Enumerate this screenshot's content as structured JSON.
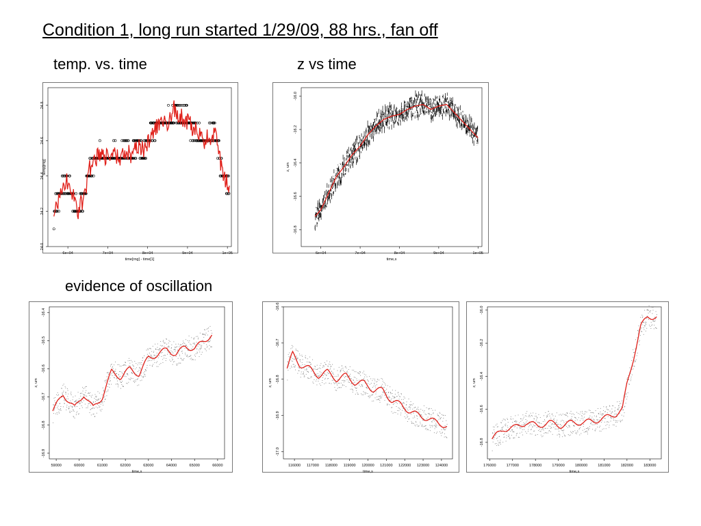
{
  "slide": {
    "title": "Condition 1, long run started 1/29/09, 88 hrs., fan off",
    "label_temp": "temp. vs. time",
    "label_z": "z vs time",
    "label_oscillation": "evidence of oscillation"
  },
  "colors": {
    "points": "#000000",
    "smooth": "#e0201a",
    "axis": "#000000"
  },
  "chart_data": [
    {
      "id": "temp",
      "type": "scatter",
      "xlabel": "time[rng] - time[1]",
      "ylabel": "temp[rng]",
      "xlim": [
        55000,
        101000
      ],
      "ylim": [
        24.0,
        24.9
      ],
      "xticks": [
        60000,
        70000,
        80000,
        90000,
        100000
      ],
      "xtick_labels": [
        "6e+04",
        "7e+04",
        "8e+04",
        "9e+04",
        "1e+05"
      ],
      "yticks": [
        24.0,
        24.2,
        24.4,
        24.6,
        24.8
      ],
      "ytick_labels": [
        "24.0",
        "24.2",
        "24.4",
        "24.6",
        "24.8"
      ],
      "smooth_x": [
        56500,
        58000,
        59500,
        61000,
        62500,
        64000,
        65500,
        67000,
        68500,
        70000,
        71500,
        73000,
        74500,
        76000,
        77500,
        79000,
        80500,
        82000,
        83500,
        85000,
        86500,
        88000,
        89500,
        91000,
        92500,
        94000,
        95500,
        97000,
        98500,
        100500
      ],
      "smooth_y": [
        24.18,
        24.28,
        24.38,
        24.3,
        24.2,
        24.28,
        24.44,
        24.5,
        24.52,
        24.5,
        24.52,
        24.5,
        24.55,
        24.5,
        24.58,
        24.55,
        24.62,
        24.68,
        24.72,
        24.7,
        24.78,
        24.74,
        24.72,
        24.68,
        24.64,
        24.6,
        24.62,
        24.64,
        24.44,
        24.33
      ],
      "grid": false
    },
    {
      "id": "z",
      "type": "scatter",
      "xlabel": "time,s",
      "ylabel": "z, um",
      "xlim": [
        55000,
        101000
      ],
      "ylim": [
        -16.9,
        -15.95
      ],
      "xticks": [
        60000,
        70000,
        80000,
        90000,
        100000
      ],
      "xtick_labels": [
        "6e+04",
        "7e+04",
        "8e+04",
        "9e+04",
        "1e+05"
      ],
      "yticks": [
        -16.8,
        -16.6,
        -16.4,
        -16.2,
        -16.0
      ],
      "ytick_labels": [
        "-16.8",
        "-16.6",
        "-16.4",
        "-16.2",
        "-16.0"
      ],
      "smooth_x": [
        58500,
        60000,
        62000,
        64000,
        66000,
        68000,
        70000,
        72000,
        74000,
        76000,
        78000,
        80000,
        82000,
        84000,
        86000,
        88000,
        90000,
        92000,
        94000,
        96000,
        98000,
        100000
      ],
      "smooth_y": [
        -16.72,
        -16.68,
        -16.58,
        -16.48,
        -16.42,
        -16.35,
        -16.3,
        -16.23,
        -16.18,
        -16.14,
        -16.12,
        -16.11,
        -16.08,
        -16.06,
        -16.05,
        -16.08,
        -16.06,
        -16.05,
        -16.1,
        -16.15,
        -16.2,
        -16.25
      ],
      "grid": false
    },
    {
      "id": "osc1",
      "type": "scatter",
      "xlabel": "time,s",
      "ylabel": "z, um",
      "xlim": [
        58700,
        66300
      ],
      "ylim": [
        -16.92,
        -16.38
      ],
      "xticks": [
        59000,
        60000,
        61000,
        62000,
        63000,
        64000,
        65000,
        66000
      ],
      "xtick_labels": [
        "59000",
        "60000",
        "61000",
        "62000",
        "63000",
        "64000",
        "65000",
        "66000"
      ],
      "yticks": [
        -16.9,
        -16.8,
        -16.7,
        -16.6,
        -16.5,
        -16.4
      ],
      "ytick_labels": [
        "-16.9",
        "-16.8",
        "-16.7",
        "-16.6",
        "-16.5",
        "-16.4"
      ],
      "smooth_x": [
        58850,
        59300,
        59800,
        60200,
        60600,
        61000,
        61400,
        61800,
        62200,
        62600,
        63000,
        63400,
        63800,
        64200,
        64600,
        65000,
        65400,
        65750
      ],
      "smooth_y": [
        -16.75,
        -16.69,
        -16.74,
        -16.69,
        -16.74,
        -16.7,
        -16.61,
        -16.63,
        -16.6,
        -16.62,
        -16.56,
        -16.55,
        -16.53,
        -16.55,
        -16.52,
        -16.53,
        -16.5,
        -16.48
      ],
      "grid": false
    },
    {
      "id": "osc2",
      "type": "scatter",
      "xlabel": "time,s",
      "ylabel": "z, um",
      "xlim": [
        115400,
        124600
      ],
      "ylim": [
        -17.02,
        -16.6
      ],
      "xticks": [
        116000,
        117000,
        118000,
        119000,
        120000,
        121000,
        122000,
        123000,
        124000
      ],
      "xtick_labels": [
        "116000",
        "117000",
        "118000",
        "119000",
        "120000",
        "121000",
        "122000",
        "123000",
        "124000"
      ],
      "yticks": [
        -17.0,
        -16.9,
        -16.8,
        -16.7,
        -16.6
      ],
      "ytick_labels": [
        "-17.0",
        "-16.9",
        "-16.8",
        "-16.7",
        "-16.6"
      ],
      "smooth_x": [
        115600,
        115900,
        116300,
        116800,
        117300,
        117800,
        118300,
        118800,
        119300,
        119800,
        120300,
        120800,
        121300,
        121800,
        122300,
        122800,
        123300,
        123800,
        124300
      ],
      "smooth_y": [
        -16.77,
        -16.73,
        -16.76,
        -16.77,
        -16.79,
        -16.78,
        -16.8,
        -16.79,
        -16.81,
        -16.81,
        -16.83,
        -16.83,
        -16.86,
        -16.87,
        -16.89,
        -16.9,
        -16.91,
        -16.92,
        -16.93
      ],
      "grid": false
    },
    {
      "id": "osc3",
      "type": "scatter",
      "xlabel": "time,s",
      "ylabel": "z, um",
      "xlim": [
        175900,
        183500
      ],
      "ylim": [
        -16.9,
        -15.98
      ],
      "xticks": [
        176000,
        177000,
        178000,
        179000,
        180000,
        181000,
        182000,
        183000
      ],
      "xtick_labels": [
        "176000",
        "177000",
        "178000",
        "179000",
        "180000",
        "181000",
        "182000",
        "183000"
      ],
      "yticks": [
        -16.8,
        -16.6,
        -16.4,
        -16.2,
        -16.0
      ],
      "ytick_labels": [
        "-16.8",
        "-16.6",
        "-16.4",
        "-16.2",
        "-16.0"
      ],
      "smooth_x": [
        176100,
        176600,
        177100,
        177600,
        178100,
        178600,
        179100,
        179600,
        180100,
        180600,
        181100,
        181500,
        181800,
        182000,
        182300,
        182600,
        182900,
        183300
      ],
      "smooth_y": [
        -16.78,
        -16.72,
        -16.71,
        -16.68,
        -16.7,
        -16.68,
        -16.7,
        -16.68,
        -16.68,
        -16.67,
        -16.65,
        -16.63,
        -16.6,
        -16.45,
        -16.28,
        -16.1,
        -16.04,
        -16.04
      ],
      "grid": false
    }
  ]
}
